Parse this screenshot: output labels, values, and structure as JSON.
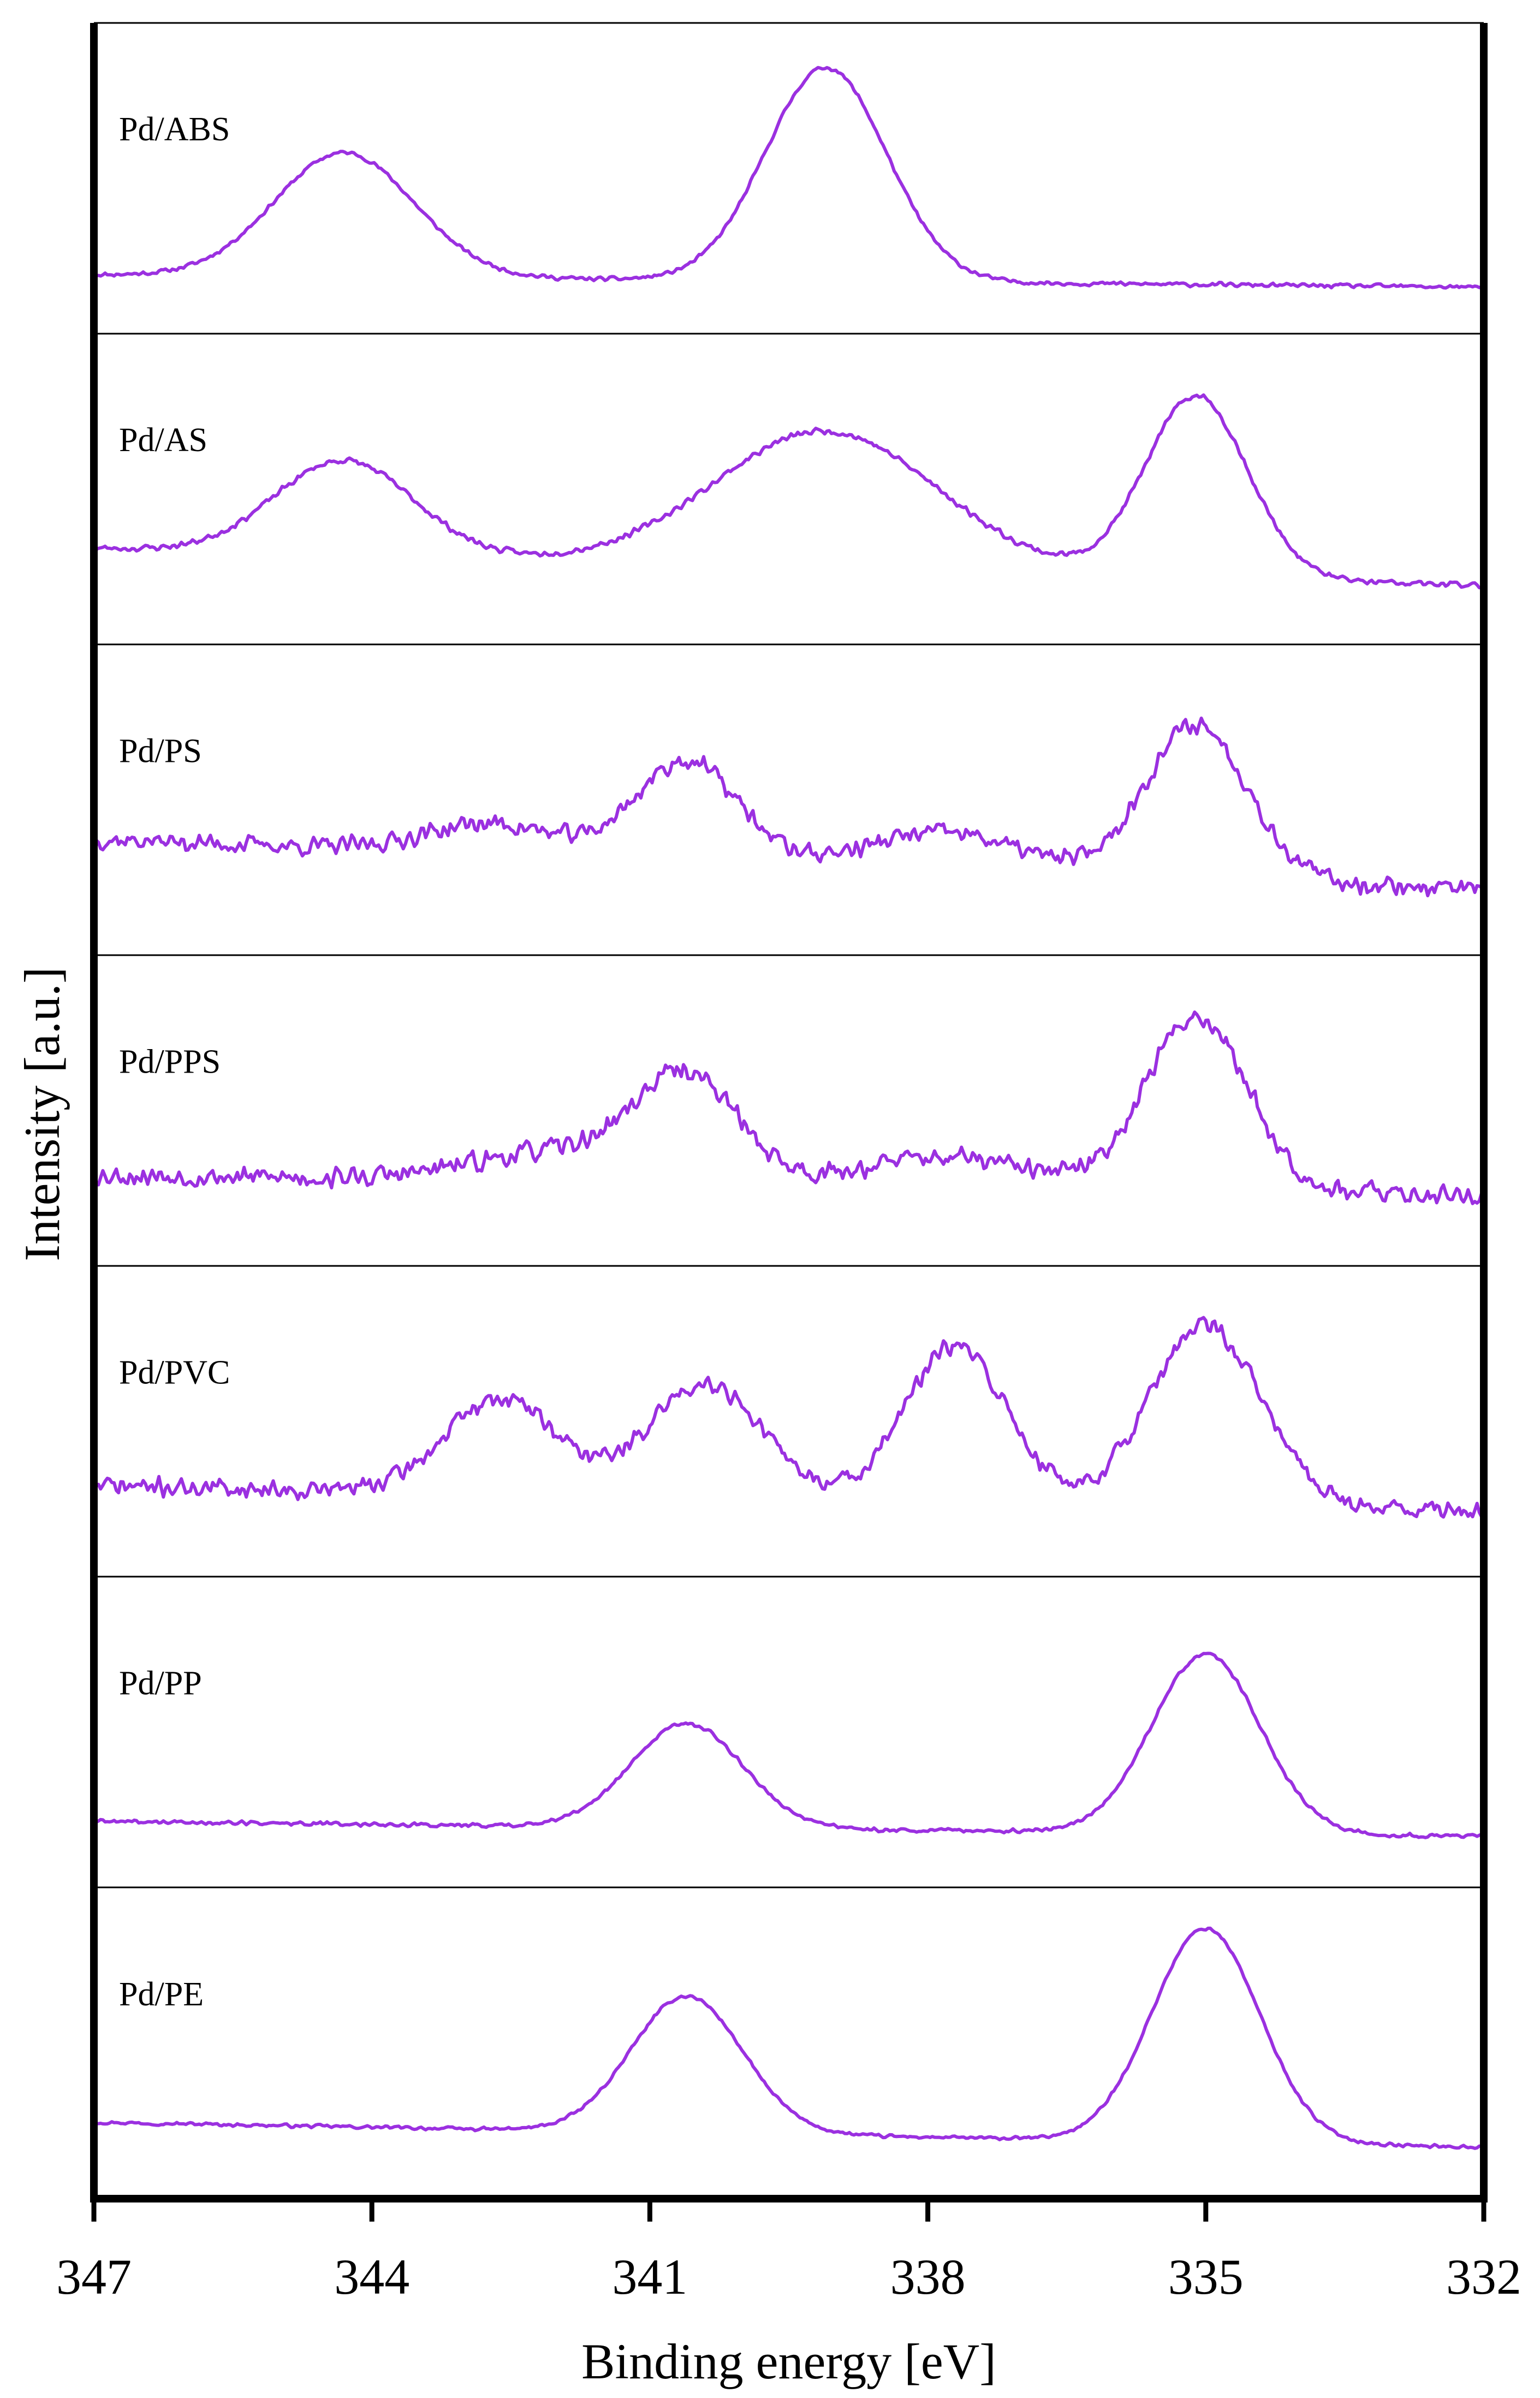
{
  "chart_data": {
    "type": "line",
    "title": "",
    "xlabel": "Binding energy [eV]",
    "ylabel": "Intensity [a.u.]",
    "xlim": [
      347,
      332
    ],
    "x_reversed": true,
    "xticks": [
      347,
      344,
      341,
      338,
      335,
      332
    ],
    "grid": false,
    "line_color": "#9B30E0",
    "panels": [
      {
        "name": "Pd/ABS",
        "seed": 11,
        "noise": 0.01,
        "baseline": [
          0.05,
          0.0
        ],
        "peaks": [
          {
            "x": 344.3,
            "height": 0.5,
            "width": 0.75
          },
          {
            "x": 339.1,
            "height": 0.86,
            "width": 0.65
          }
        ]
      },
      {
        "name": "Pd/AS",
        "seed": 23,
        "noise": 0.015,
        "baseline": [
          0.2,
          0.05
        ],
        "peaks": [
          {
            "x": 344.3,
            "height": 0.38,
            "width": 0.75
          },
          {
            "x": 339.1,
            "height": 0.55,
            "width": 1.2
          },
          {
            "x": 335.1,
            "height": 0.73,
            "width": 0.55
          }
        ]
      },
      {
        "name": "Pd/PS",
        "seed": 37,
        "noise": 0.045,
        "baseline": [
          0.28,
          0.08
        ],
        "peaks": [
          {
            "x": 342.7,
            "height": 0.12,
            "width": 0.7
          },
          {
            "x": 340.6,
            "height": 0.4,
            "width": 0.55
          },
          {
            "x": 337.8,
            "height": 0.15,
            "width": 0.8
          },
          {
            "x": 335.1,
            "height": 0.62,
            "width": 0.55
          }
        ]
      },
      {
        "name": "Pd/PPS",
        "seed": 53,
        "noise": 0.05,
        "baseline": [
          0.18,
          0.1
        ],
        "peaks": [
          {
            "x": 342.0,
            "height": 0.12,
            "width": 0.9
          },
          {
            "x": 340.6,
            "height": 0.42,
            "width": 0.55
          },
          {
            "x": 337.8,
            "height": 0.12,
            "width": 0.9
          },
          {
            "x": 335.1,
            "height": 0.7,
            "width": 0.55
          }
        ]
      },
      {
        "name": "Pd/PVC",
        "seed": 71,
        "noise": 0.045,
        "baseline": [
          0.18,
          0.08
        ],
        "peaks": [
          {
            "x": 342.6,
            "height": 0.38,
            "width": 0.6
          },
          {
            "x": 340.4,
            "height": 0.46,
            "width": 0.6
          },
          {
            "x": 337.7,
            "height": 0.62,
            "width": 0.55
          },
          {
            "x": 335.0,
            "height": 0.72,
            "width": 0.6
          }
        ]
      },
      {
        "name": "Pd/PP",
        "seed": 89,
        "noise": 0.01,
        "baseline": [
          0.08,
          0.02
        ],
        "peaks": [
          {
            "x": 340.6,
            "height": 0.42,
            "width": 0.6
          },
          {
            "x": 335.0,
            "height": 0.72,
            "width": 0.58
          }
        ]
      },
      {
        "name": "Pd/PE",
        "seed": 97,
        "noise": 0.008,
        "baseline": [
          0.12,
          0.02
        ],
        "peaks": [
          {
            "x": 340.6,
            "height": 0.55,
            "width": 0.6
          },
          {
            "x": 335.0,
            "height": 0.86,
            "width": 0.58
          }
        ]
      }
    ]
  }
}
